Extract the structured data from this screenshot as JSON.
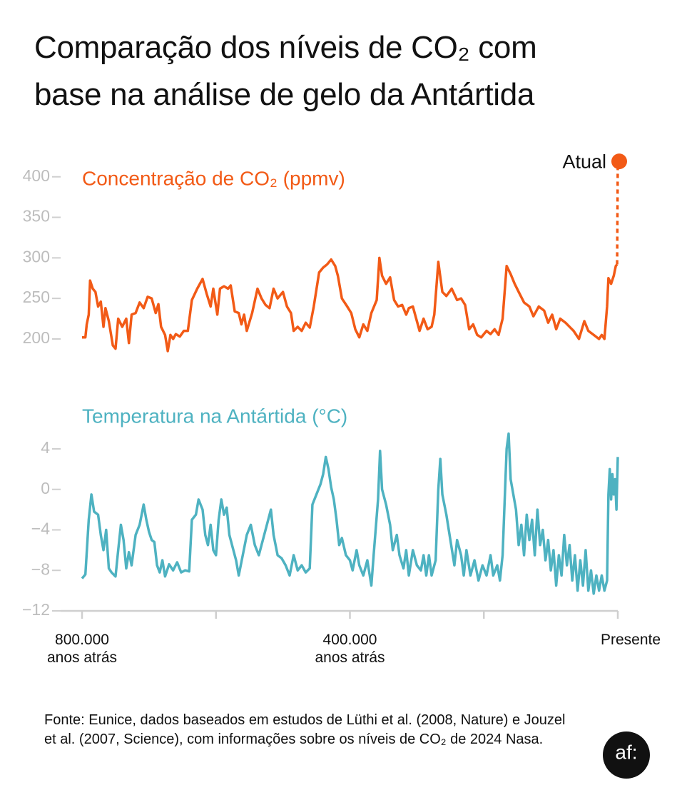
{
  "title": "Comparação dos níveis de CO₂ com\nbase na análise de gelo da Antártida",
  "source": "Fonte: Eunice, dados baseados em estudos de Lüthi et al. (2008, Nature) e Jouzel et al. (2007, Science), com informações sobre os níveis de CO₂ de 2024 Nasa.",
  "logo": "af:",
  "chart_data": [
    {
      "type": "line",
      "xlim": [
        800000,
        0
      ],
      "ylim": [
        180,
        420
      ],
      "yticks": [
        200,
        250,
        300,
        350,
        400
      ],
      "x": [
        800000,
        795000,
        793000,
        790000,
        788000,
        784000,
        780000,
        776000,
        772000,
        768000,
        765000,
        760000,
        754000,
        750000,
        746000,
        740000,
        734000,
        730000,
        726000,
        720000,
        714000,
        708000,
        702000,
        696000,
        690000,
        686000,
        682000,
        676000,
        672000,
        668000,
        664000,
        660000,
        654000,
        648000,
        642000,
        636000,
        628000,
        620000,
        614000,
        608000,
        604000,
        598000,
        594000,
        588000,
        582000,
        578000,
        572000,
        566000,
        562000,
        558000,
        554000,
        546000,
        538000,
        532000,
        526000,
        520000,
        514000,
        508000,
        500000,
        494000,
        488000,
        484000,
        478000,
        472000,
        466000,
        460000,
        454000,
        446000,
        440000,
        434000,
        428000,
        422000,
        418000,
        412000,
        404000,
        398000,
        392000,
        386000,
        380000,
        374000,
        368000,
        360000,
        356000,
        352000,
        346000,
        340000,
        334000,
        328000,
        322000,
        316000,
        312000,
        306000,
        300000,
        296000,
        290000,
        284000,
        278000,
        274000,
        268000,
        262000,
        256000,
        248000,
        240000,
        234000,
        228000,
        222000,
        216000,
        210000,
        204000,
        196000,
        190000,
        184000,
        178000,
        172000,
        166000,
        160000,
        154000,
        148000,
        140000,
        132000,
        126000,
        118000,
        110000,
        104000,
        98000,
        92000,
        86000,
        78000,
        72000,
        66000,
        58000,
        50000,
        44000,
        36000,
        28000,
        24000,
        20000,
        16000,
        14000,
        10000,
        6000,
        3000,
        1000
      ],
      "series": [
        {
          "name": "Concentração de CO₂ (ppmv)",
          "color": "#f25a16",
          "values": [
            202,
            202,
            218,
            230,
            272,
            262,
            258,
            240,
            246,
            215,
            238,
            222,
            192,
            188,
            225,
            215,
            225,
            195,
            230,
            232,
            245,
            238,
            252,
            250,
            232,
            243,
            215,
            205,
            185,
            205,
            200,
            206,
            203,
            210,
            210,
            248,
            262,
            274,
            256,
            240,
            262,
            230,
            262,
            265,
            262,
            266,
            234,
            232,
            218,
            230,
            210,
            232,
            262,
            250,
            242,
            238,
            262,
            250,
            258,
            240,
            232,
            210,
            215,
            210,
            220,
            214,
            240,
            282,
            288,
            292,
            298,
            290,
            278,
            250,
            240,
            232,
            212,
            202,
            218,
            210,
            232,
            248,
            300,
            278,
            268,
            276,
            248,
            240,
            242,
            230,
            238,
            240,
            222,
            210,
            225,
            212,
            215,
            230,
            295,
            258,
            253,
            262,
            248,
            250,
            242,
            212,
            218,
            205,
            202,
            210,
            206,
            212,
            205,
            225,
            290,
            280,
            268,
            258,
            245,
            240,
            228,
            240,
            235,
            220,
            230,
            212,
            225,
            220,
            215,
            210,
            200,
            222,
            210,
            205,
            200,
            205,
            200,
            240,
            275,
            268,
            278,
            290,
            292
          ]
        }
      ],
      "annotation": {
        "text": "Atual",
        "x": 0,
        "value": 419
      }
    },
    {
      "type": "line",
      "xlim": [
        800000,
        0
      ],
      "ylim": [
        -12,
        6
      ],
      "yticks": [
        {
          "value": -12,
          "label": "−12"
        },
        {
          "value": -8,
          "label": "−8"
        },
        {
          "value": -4,
          "label": "−4"
        },
        0,
        4
      ],
      "xticks": [
        {
          "value": 800000,
          "label": "800.000\nanos atrás"
        },
        {
          "value": 400000,
          "label": "400.000\nanos atrás"
        },
        {
          "value": 0,
          "label": "Presente"
        }
      ],
      "xminorticks": [
        600000,
        200000
      ],
      "x": [
        800000,
        795000,
        790000,
        786000,
        782000,
        776000,
        772000,
        768000,
        764000,
        760000,
        756000,
        750000,
        746000,
        742000,
        738000,
        734000,
        730000,
        726000,
        720000,
        714000,
        708000,
        704000,
        700000,
        696000,
        692000,
        688000,
        684000,
        680000,
        676000,
        670000,
        664000,
        658000,
        652000,
        646000,
        640000,
        636000,
        630000,
        626000,
        620000,
        616000,
        612000,
        608000,
        604000,
        600000,
        596000,
        592000,
        588000,
        584000,
        580000,
        576000,
        570000,
        566000,
        560000,
        554000,
        548000,
        542000,
        536000,
        530000,
        524000,
        518000,
        514000,
        508000,
        502000,
        496000,
        490000,
        484000,
        478000,
        472000,
        466000,
        460000,
        456000,
        450000,
        444000,
        440000,
        436000,
        432000,
        428000,
        424000,
        420000,
        416000,
        412000,
        406000,
        400000,
        396000,
        390000,
        386000,
        380000,
        374000,
        368000,
        364000,
        358000,
        355000,
        352000,
        346000,
        340000,
        336000,
        330000,
        326000,
        320000,
        316000,
        312000,
        306000,
        300000,
        294000,
        290000,
        286000,
        282000,
        278000,
        272000,
        268000,
        265000,
        262000,
        256000,
        250000,
        244000,
        240000,
        234000,
        230000,
        226000,
        220000,
        214000,
        208000,
        202000,
        196000,
        190000,
        186000,
        180000,
        176000,
        172000,
        166000,
        163000,
        160000,
        156000,
        152000,
        148000,
        144000,
        140000,
        136000,
        132000,
        128000,
        124000,
        120000,
        116000,
        112000,
        108000,
        104000,
        100000,
        96000,
        92000,
        88000,
        84000,
        80000,
        76000,
        72000,
        68000,
        64000,
        60000,
        56000,
        52000,
        48000,
        44000,
        40000,
        36000,
        32000,
        28000,
        24000,
        20000,
        16000,
        14000,
        12000,
        10000,
        8000,
        6000,
        4000,
        2000,
        0
      ],
      "series": [
        {
          "name": "Temperatura na Antártida (°C)",
          "color": "#4eb2c1",
          "values": [
            -8.8,
            -8.4,
            -3,
            -0.5,
            -2.2,
            -2.5,
            -4.5,
            -6,
            -4,
            -7.8,
            -8.2,
            -8.6,
            -6,
            -3.5,
            -5,
            -7.8,
            -6.2,
            -7.5,
            -4.5,
            -3.5,
            -1.5,
            -3,
            -4.2,
            -5,
            -5.2,
            -7.5,
            -8.2,
            -7,
            -8.6,
            -7.4,
            -8,
            -7.2,
            -8.2,
            -8,
            -8.1,
            -3,
            -2.5,
            -1,
            -2,
            -4.5,
            -5.5,
            -3.5,
            -6,
            -6.5,
            -3,
            -1,
            -2.5,
            -1.8,
            -4.5,
            -5.5,
            -7,
            -8.5,
            -6.5,
            -4.5,
            -3.5,
            -5.5,
            -6.5,
            -5,
            -3.5,
            -2,
            -4.5,
            -6.5,
            -6.8,
            -7.5,
            -8.5,
            -6.5,
            -8,
            -7.5,
            -8.2,
            -7.8,
            -1.5,
            -0.5,
            0.5,
            1.5,
            3.2,
            2,
            0.2,
            -1,
            -3,
            -5.5,
            -4.8,
            -6.5,
            -7,
            -8,
            -6,
            -7.5,
            -8.5,
            -7,
            -9.5,
            -6,
            -1,
            3.8,
            0,
            -1.5,
            -3.5,
            -6,
            -4.5,
            -6.5,
            -7.8,
            -6,
            -8.5,
            -6,
            -7.5,
            -8,
            -6.5,
            -8.5,
            -6.5,
            -8.5,
            -7,
            0,
            3,
            -0.5,
            -2.5,
            -5,
            -7.5,
            -5,
            -6.5,
            -8.5,
            -6,
            -8.5,
            -7,
            -9,
            -7.5,
            -8.5,
            -6.5,
            -8.5,
            -7.5,
            -9,
            -6.5,
            4,
            5.5,
            1,
            -0.5,
            -2,
            -5.5,
            -3.5,
            -6.5,
            -2.5,
            -5,
            -3,
            -6.5,
            -2,
            -5.5,
            -4,
            -7,
            -5,
            -8,
            -6,
            -9.5,
            -6.5,
            -8.5,
            -4.5,
            -7.5,
            -5.5,
            -9,
            -6.5,
            -10,
            -7,
            -9.5,
            -6,
            -10,
            -8,
            -10.3,
            -8.5,
            -10,
            -8.5,
            -10,
            -9,
            -0.5,
            2,
            -1,
            1.5,
            -0.5,
            1,
            -2,
            3.2
          ]
        }
      ]
    }
  ]
}
